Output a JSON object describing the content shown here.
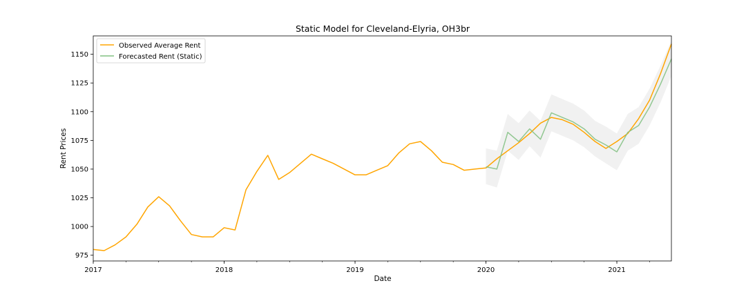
{
  "chart_data": {
    "type": "line",
    "title": "Static Model for Cleveland-Elyria, OH3br",
    "xlabel": "Date",
    "ylabel": "Rent Prices",
    "x_ticks": [
      "2017",
      "2018",
      "2019",
      "2020",
      "2021"
    ],
    "y_ticks": [
      975,
      1000,
      1025,
      1050,
      1075,
      1100,
      1125,
      1150
    ],
    "xlim": [
      "2017-01",
      "2021-06"
    ],
    "ylim": [
      970,
      1166
    ],
    "grid": false,
    "legend_position": "top-left",
    "series": [
      {
        "name": "Observed Average Rent",
        "color": "#ffa500",
        "points": [
          [
            "2017-01",
            980
          ],
          [
            "2017-02",
            979
          ],
          [
            "2017-03",
            984
          ],
          [
            "2017-04",
            991
          ],
          [
            "2017-05",
            1002
          ],
          [
            "2017-06",
            1017
          ],
          [
            "2017-07",
            1026
          ],
          [
            "2017-08",
            1018
          ],
          [
            "2017-09",
            1005
          ],
          [
            "2017-10",
            993
          ],
          [
            "2017-11",
            991
          ],
          [
            "2017-12",
            991
          ],
          [
            "2018-01",
            999
          ],
          [
            "2018-02",
            997
          ],
          [
            "2018-03",
            1032
          ],
          [
            "2018-04",
            1048
          ],
          [
            "2018-05",
            1062
          ],
          [
            "2018-06",
            1041
          ],
          [
            "2018-07",
            1047
          ],
          [
            "2018-08",
            1055
          ],
          [
            "2018-09",
            1063
          ],
          [
            "2018-10",
            1059
          ],
          [
            "2018-11",
            1055
          ],
          [
            "2018-12",
            1050
          ],
          [
            "2019-01",
            1045
          ],
          [
            "2019-02",
            1045
          ],
          [
            "2019-03",
            1049
          ],
          [
            "2019-04",
            1053
          ],
          [
            "2019-05",
            1064
          ],
          [
            "2019-06",
            1072
          ],
          [
            "2019-07",
            1074
          ],
          [
            "2019-08",
            1066
          ],
          [
            "2019-09",
            1056
          ],
          [
            "2019-10",
            1054
          ],
          [
            "2019-11",
            1049
          ],
          [
            "2019-12",
            1050
          ],
          [
            "2020-01",
            1051
          ],
          [
            "2020-02",
            1059
          ],
          [
            "2020-03",
            1066
          ],
          [
            "2020-04",
            1073
          ],
          [
            "2020-05",
            1081
          ],
          [
            "2020-06",
            1090
          ],
          [
            "2020-07",
            1095
          ],
          [
            "2020-08",
            1093
          ],
          [
            "2020-09",
            1089
          ],
          [
            "2020-10",
            1082
          ],
          [
            "2020-11",
            1074
          ],
          [
            "2020-12",
            1068
          ],
          [
            "2021-01",
            1074
          ],
          [
            "2021-02",
            1081
          ],
          [
            "2021-03",
            1094
          ],
          [
            "2021-04",
            1110
          ],
          [
            "2021-05",
            1133
          ],
          [
            "2021-06",
            1159
          ]
        ]
      },
      {
        "name": "Forecasted Rent (Static)",
        "color": "#80c080",
        "points": [
          [
            "2020-01",
            1052
          ],
          [
            "2020-02",
            1050
          ],
          [
            "2020-03",
            1082
          ],
          [
            "2020-04",
            1074
          ],
          [
            "2020-05",
            1085
          ],
          [
            "2020-06",
            1076
          ],
          [
            "2020-07",
            1099
          ],
          [
            "2020-08",
            1095
          ],
          [
            "2020-09",
            1091
          ],
          [
            "2020-10",
            1085
          ],
          [
            "2020-11",
            1076
          ],
          [
            "2020-12",
            1071
          ],
          [
            "2021-01",
            1065
          ],
          [
            "2021-02",
            1082
          ],
          [
            "2021-03",
            1088
          ],
          [
            "2021-04",
            1104
          ],
          [
            "2021-05",
            1124
          ],
          [
            "2021-06",
            1146
          ]
        ],
        "band_lower": [
          1037,
          1034,
          1066,
          1058,
          1070,
          1060,
          1083,
          1079,
          1075,
          1069,
          1061,
          1055,
          1049,
          1066,
          1072,
          1088,
          1108,
          1131
        ],
        "band_upper": [
          1068,
          1066,
          1098,
          1090,
          1101,
          1092,
          1115,
          1111,
          1107,
          1101,
          1092,
          1087,
          1081,
          1098,
          1104,
          1120,
          1140,
          1162
        ],
        "band_color": "#e8e8e8"
      }
    ]
  }
}
